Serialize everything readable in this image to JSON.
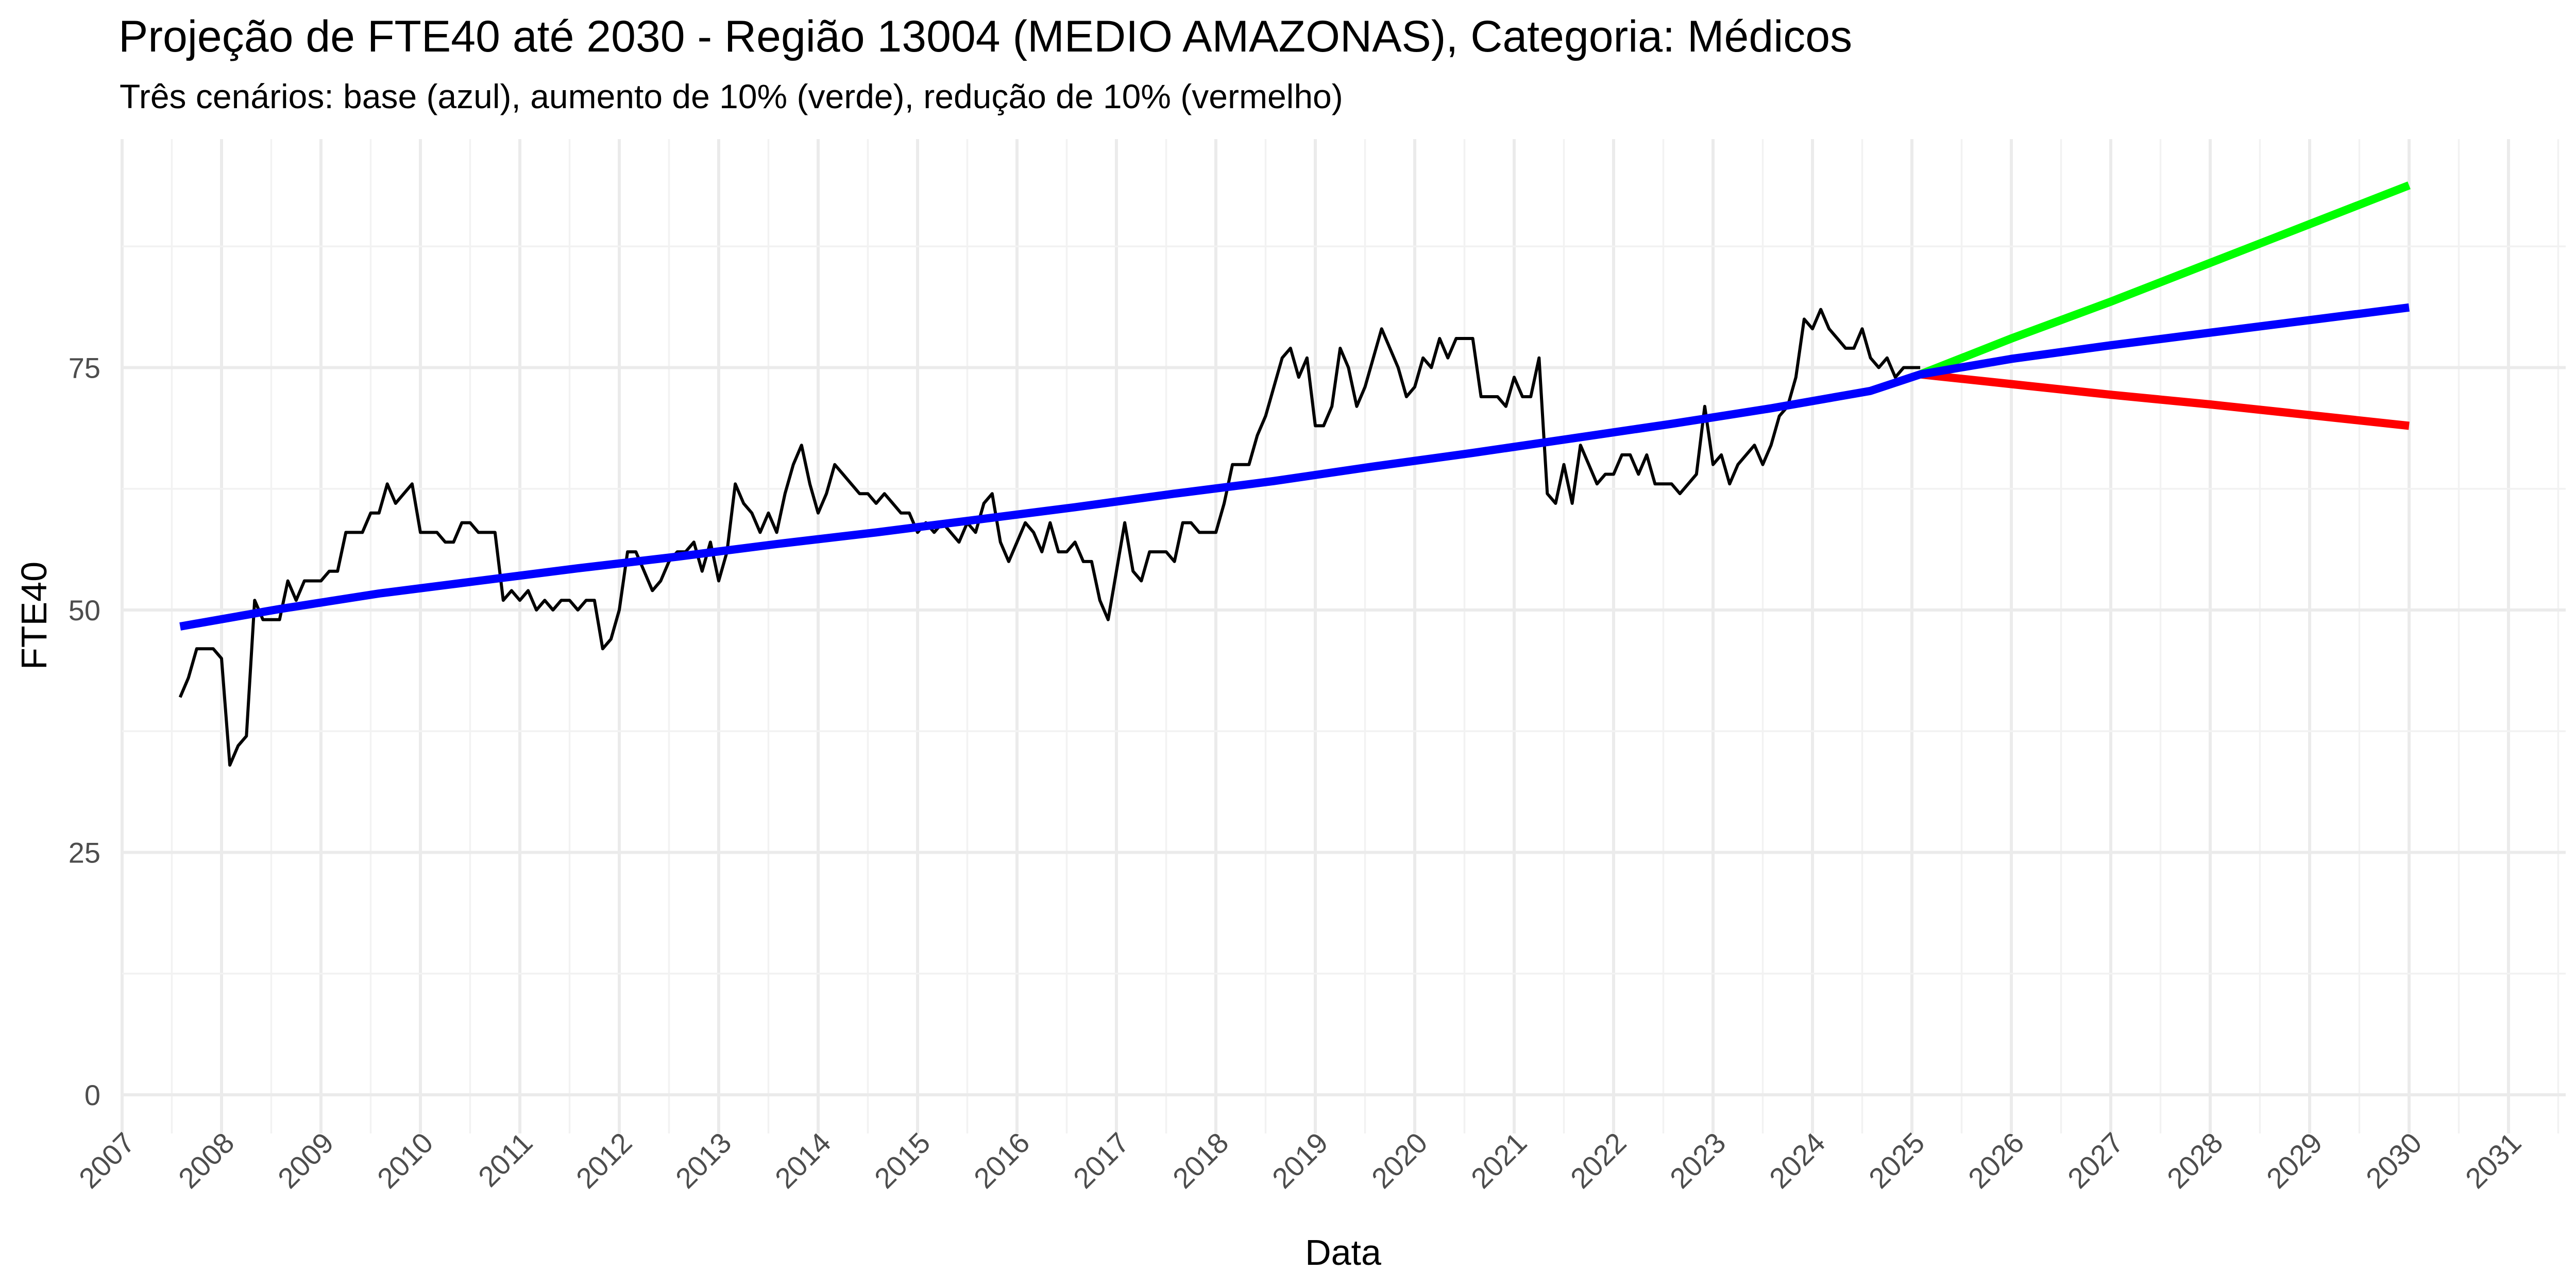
{
  "chart_data": {
    "type": "line",
    "title": "Projeção de FTE40 até 2030 - Região 13004 (MEDIO AMAZONAS), Categoria: Médicos",
    "subtitle": "Três cenários: base (azul), aumento de 10% (verde), redução de 10% (vermelho)",
    "xlabel": "Data",
    "ylabel": "FTE40",
    "x_type": "date",
    "xlim": [
      "2007-01-01",
      "2031-01-01"
    ],
    "ylim": [
      0,
      100
    ],
    "y_ticks": [
      0,
      25,
      50,
      75
    ],
    "x_tick_labels": [
      "2007",
      "2008",
      "2009",
      "2010",
      "2011",
      "2012",
      "2013",
      "2014",
      "2015",
      "2016",
      "2017",
      "2018",
      "2019",
      "2020",
      "2021",
      "2022",
      "2023",
      "2024",
      "2025",
      "2026",
      "2027",
      "2028",
      "2029",
      "2030",
      "2031"
    ],
    "grid": true,
    "legend": "none",
    "series": [
      {
        "role": "observed",
        "color": "#000000",
        "x": [
          "2007-08",
          "2007-09",
          "2007-10",
          "2007-11",
          "2007-12",
          "2008-01",
          "2008-02",
          "2008-03",
          "2008-04",
          "2008-05",
          "2008-06",
          "2008-07",
          "2008-08",
          "2008-09",
          "2008-10",
          "2008-11",
          "2008-12",
          "2009-01",
          "2009-02",
          "2009-03",
          "2009-04",
          "2009-05",
          "2009-06",
          "2009-07",
          "2009-08",
          "2009-09",
          "2009-10",
          "2009-11",
          "2009-12",
          "2010-01",
          "2010-02",
          "2010-03",
          "2010-04",
          "2010-05",
          "2010-06",
          "2010-07",
          "2010-08",
          "2010-09",
          "2010-10",
          "2010-11",
          "2010-12",
          "2011-01",
          "2011-02",
          "2011-03",
          "2011-04",
          "2011-05",
          "2011-06",
          "2011-07",
          "2011-08",
          "2011-09",
          "2011-10",
          "2011-11",
          "2011-12",
          "2012-01",
          "2012-02",
          "2012-03",
          "2012-04",
          "2012-05",
          "2012-06",
          "2012-07",
          "2012-08",
          "2012-09",
          "2012-10",
          "2012-11",
          "2012-12",
          "2013-01",
          "2013-02",
          "2013-03",
          "2013-04",
          "2013-05",
          "2013-06",
          "2013-07",
          "2013-08",
          "2013-09",
          "2013-10",
          "2013-11",
          "2013-12",
          "2014-01",
          "2014-02",
          "2014-03",
          "2014-04",
          "2014-05",
          "2014-06",
          "2014-07",
          "2014-08",
          "2014-09",
          "2014-10",
          "2014-11",
          "2014-12",
          "2015-01",
          "2015-02",
          "2015-03",
          "2015-04",
          "2015-05",
          "2015-06",
          "2015-07",
          "2015-08",
          "2015-09",
          "2015-10",
          "2015-11",
          "2015-12",
          "2016-01",
          "2016-02",
          "2016-03",
          "2016-04",
          "2016-05",
          "2016-06",
          "2016-07",
          "2016-08",
          "2016-09",
          "2016-10",
          "2016-11",
          "2016-12",
          "2017-01",
          "2017-02",
          "2017-03",
          "2017-04",
          "2017-05",
          "2017-06",
          "2017-07",
          "2017-08",
          "2017-09",
          "2017-10",
          "2017-11",
          "2017-12",
          "2018-01",
          "2018-02",
          "2018-03",
          "2018-04",
          "2018-05",
          "2018-06",
          "2018-07",
          "2018-08",
          "2018-09",
          "2018-10",
          "2018-11",
          "2018-12",
          "2019-01",
          "2019-02",
          "2019-03",
          "2019-04",
          "2019-05",
          "2019-06",
          "2019-07",
          "2019-08",
          "2019-09",
          "2019-10",
          "2019-11",
          "2019-12",
          "2020-01",
          "2020-02",
          "2020-03",
          "2020-04",
          "2020-05",
          "2020-06",
          "2020-07",
          "2020-08",
          "2020-09",
          "2020-10",
          "2020-11",
          "2020-12",
          "2021-01",
          "2021-02",
          "2021-03",
          "2021-04",
          "2021-05",
          "2021-06",
          "2021-07",
          "2021-08",
          "2021-09",
          "2021-10",
          "2021-11",
          "2021-12",
          "2022-01",
          "2022-02",
          "2022-03",
          "2022-04",
          "2022-05",
          "2022-06",
          "2022-07",
          "2022-08",
          "2022-09",
          "2022-10",
          "2022-11",
          "2022-12",
          "2023-01",
          "2023-02",
          "2023-03",
          "2023-04",
          "2023-05",
          "2023-06",
          "2023-07",
          "2023-08",
          "2023-09",
          "2023-10",
          "2023-11",
          "2023-12",
          "2024-01",
          "2024-02",
          "2024-03",
          "2024-04",
          "2024-05",
          "2024-06",
          "2024-07",
          "2024-08",
          "2024-09",
          "2024-10",
          "2024-11",
          "2024-12",
          "2025-01",
          "2025-02"
        ],
        "y": [
          41,
          43,
          46,
          46,
          46,
          45,
          34,
          36,
          37,
          51,
          49,
          49,
          49,
          53,
          51,
          53,
          53,
          53,
          54,
          54,
          58,
          58,
          58,
          60,
          60,
          63,
          61,
          62,
          63,
          58,
          58,
          58,
          57,
          57,
          59,
          59,
          58,
          58,
          58,
          51,
          52,
          51,
          52,
          50,
          51,
          50,
          51,
          51,
          50,
          51,
          51,
          46,
          47,
          50,
          56,
          56,
          54,
          52,
          53,
          55,
          56,
          56,
          57,
          54,
          57,
          53,
          56,
          63,
          61,
          60,
          58,
          60,
          58,
          62,
          65,
          67,
          63,
          60,
          62,
          65,
          64,
          63,
          62,
          62,
          61,
          62,
          61,
          60,
          60,
          58,
          59,
          58,
          59,
          58,
          57,
          59,
          58,
          61,
          62,
          57,
          55,
          57,
          59,
          58,
          56,
          59,
          56,
          56,
          57,
          55,
          55,
          51,
          49,
          54,
          59,
          54,
          53,
          56,
          56,
          56,
          55,
          59,
          59,
          58,
          58,
          58,
          61,
          65,
          65,
          65,
          68,
          70,
          73,
          76,
          77,
          74,
          76,
          69,
          69,
          71,
          77,
          75,
          71,
          73,
          76,
          79,
          77,
          75,
          72,
          73,
          76,
          75,
          78,
          76,
          78,
          78,
          78,
          72,
          72,
          72,
          71,
          74,
          72,
          72,
          76,
          62,
          61,
          65,
          61,
          67,
          65,
          63,
          64,
          64,
          66,
          66,
          64,
          66,
          63,
          63,
          63,
          62,
          63,
          64,
          71,
          65,
          66,
          63,
          65,
          66,
          67,
          65,
          67,
          70,
          71,
          74,
          80,
          79,
          81,
          79,
          78,
          77,
          77,
          79,
          76,
          75,
          76,
          74,
          75,
          75,
          75
        ]
      },
      {
        "role": "base",
        "color": "#0000ff",
        "x": [
          "2007-08",
          "2008-08",
          "2009-08",
          "2010-08",
          "2011-08",
          "2012-08",
          "2013-08",
          "2014-08",
          "2015-08",
          "2016-08",
          "2017-08",
          "2018-08",
          "2019-08",
          "2020-08",
          "2021-08",
          "2022-08",
          "2023-08",
          "2024-08",
          "2025-02",
          "2026-01",
          "2027-01",
          "2028-01",
          "2029-01",
          "2030-01"
        ],
        "y": [
          48.3,
          50.1,
          51.7,
          53.0,
          54.3,
          55.5,
          56.8,
          58.0,
          59.3,
          60.6,
          62.0,
          63.3,
          64.8,
          66.2,
          67.7,
          69.2,
          70.8,
          72.6,
          74.3,
          75.9,
          77.3,
          78.6,
          79.9,
          81.2
        ]
      },
      {
        "role": "high",
        "color": "#00ff00",
        "x": [
          "2025-02",
          "2026-01",
          "2027-01",
          "2028-01",
          "2029-01",
          "2030-01"
        ],
        "y": [
          74.3,
          78.0,
          81.8,
          85.8,
          89.8,
          93.8
        ]
      },
      {
        "role": "low",
        "color": "#ff0000",
        "x": [
          "2025-02",
          "2026-01",
          "2027-01",
          "2028-01",
          "2029-01",
          "2030-01"
        ],
        "y": [
          74.3,
          73.3,
          72.2,
          71.2,
          70.1,
          69.0
        ]
      }
    ]
  }
}
